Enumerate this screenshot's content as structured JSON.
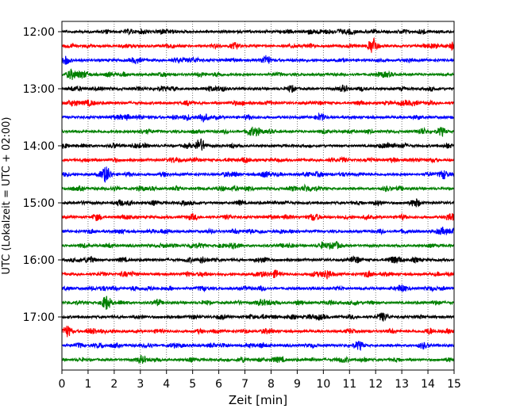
{
  "chart_data": {
    "type": "line",
    "title": "",
    "xlabel": "Zeit  [min]",
    "ylabel": "UTC (Lokalzeit = UTC + 02:00)",
    "xlim": [
      0,
      15
    ],
    "x_ticks": [
      "0",
      "1",
      "2",
      "3",
      "4",
      "5",
      "6",
      "7",
      "8",
      "9",
      "10",
      "11",
      "12",
      "13",
      "14",
      "15"
    ],
    "y_ticks": [
      "12:00",
      "13:00",
      "14:00",
      "15:00",
      "16:00",
      "17:00"
    ],
    "grid": "vertical dotted lines at each minute",
    "legend": "none",
    "trace_colors": [
      "#000000",
      "#ff0000",
      "#0000ff",
      "#008000"
    ],
    "series": [
      {
        "start": "12:00",
        "events": [
          [
            3.8,
            1.2
          ]
        ]
      },
      {
        "start": "12:15",
        "events": [
          [
            11.9,
            4.5
          ],
          [
            14.9,
            2.0
          ]
        ]
      },
      {
        "start": "12:30",
        "events": [
          [
            7.8,
            2.5
          ]
        ]
      },
      {
        "start": "12:45",
        "events": [
          [
            5.3,
            1.0
          ]
        ]
      },
      {
        "start": "13:00",
        "events": [
          [
            5.6,
            1.0
          ],
          [
            8.8,
            0.8
          ]
        ]
      },
      {
        "start": "13:15",
        "events": [
          [
            11.4,
            1.0
          ]
        ]
      },
      {
        "start": "13:30",
        "events": [
          [
            2.3,
            0.7
          ]
        ]
      },
      {
        "start": "13:45",
        "events": [
          [
            14.5,
            1.3
          ],
          [
            7.2,
            0.9
          ]
        ]
      },
      {
        "start": "14:00",
        "events": [
          [
            5.3,
            1.3
          ],
          [
            12.6,
            1.2
          ]
        ]
      },
      {
        "start": "14:15",
        "events": [
          [
            7.0,
            1.3
          ]
        ]
      },
      {
        "start": "14:30",
        "events": [
          [
            1.7,
            4.0
          ],
          [
            14.6,
            2.3
          ]
        ]
      },
      {
        "start": "14:45",
        "events": [
          [
            6.1,
            1.0
          ],
          [
            9.3,
            1.0
          ]
        ]
      },
      {
        "start": "15:00",
        "events": [
          [
            6.8,
            1.0
          ],
          [
            2.2,
            0.8
          ]
        ]
      },
      {
        "start": "15:15",
        "events": [
          [
            9.6,
            1.5
          ],
          [
            4.9,
            0.8
          ]
        ]
      },
      {
        "start": "15:30",
        "events": [
          [
            13.1,
            0.8
          ]
        ]
      },
      {
        "start": "15:45",
        "events": [
          [
            10.5,
            1.5
          ],
          [
            6.5,
            1.0
          ]
        ]
      },
      {
        "start": "16:00",
        "events": [
          [
            7.8,
            1.2
          ],
          [
            11.3,
            1.0
          ]
        ]
      },
      {
        "start": "16:15",
        "events": [
          [
            10.1,
            2.0
          ],
          [
            8.2,
            1.4
          ],
          [
            11.7,
            1.2
          ]
        ]
      },
      {
        "start": "16:30",
        "events": [
          [
            3.3,
            0.8
          ]
        ]
      },
      {
        "start": "16:45",
        "events": [
          [
            1.7,
            3.2
          ],
          [
            8.1,
            0.9
          ]
        ]
      },
      {
        "start": "17:00",
        "events": [
          [
            9.5,
            1.0
          ]
        ]
      },
      {
        "start": "17:15",
        "events": [
          [
            0.2,
            3.0
          ],
          [
            11.0,
            1.0
          ],
          [
            14.9,
            1.2
          ]
        ]
      },
      {
        "start": "17:30",
        "events": [
          [
            3.3,
            1.2
          ],
          [
            11.4,
            1.0
          ]
        ]
      },
      {
        "start": "17:45",
        "events": [
          [
            6.9,
            1.2
          ]
        ]
      }
    ]
  }
}
